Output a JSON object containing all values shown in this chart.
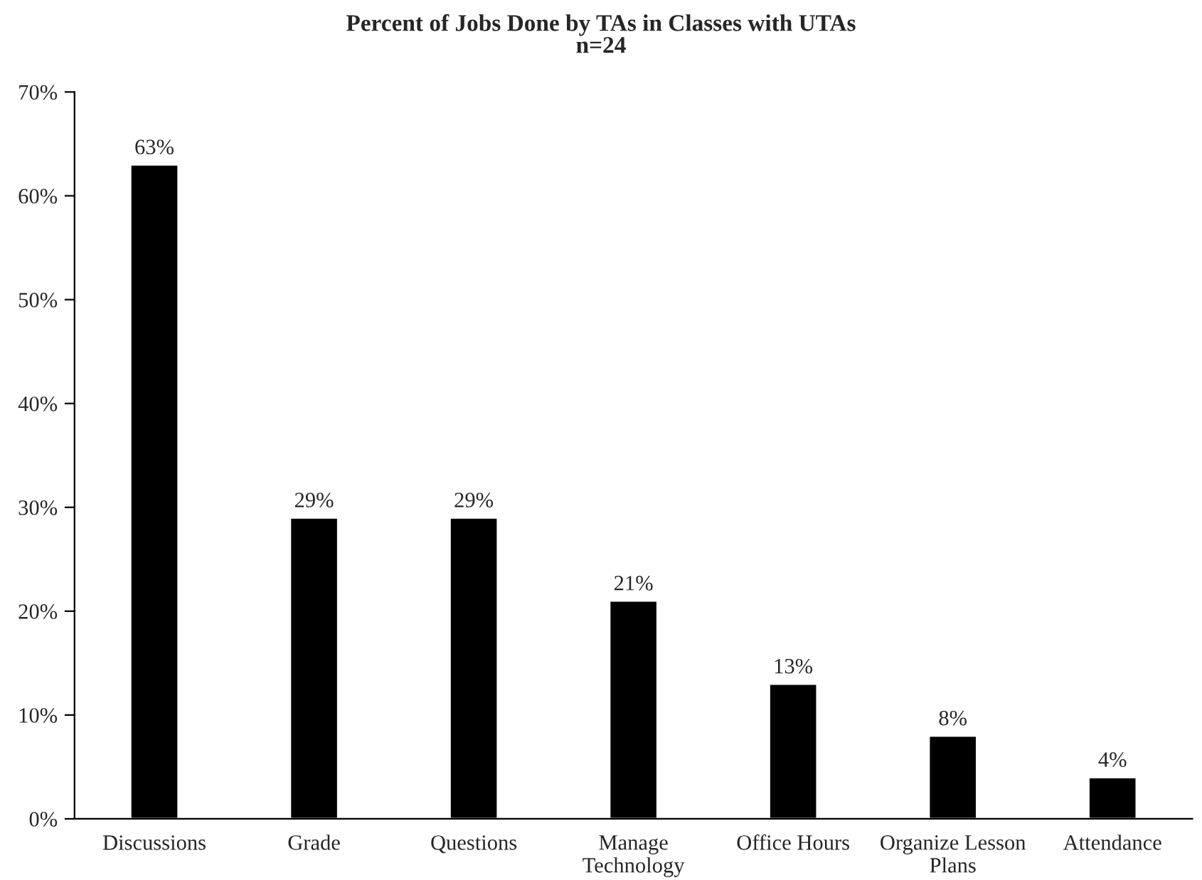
{
  "chart_data": {
    "type": "bar",
    "title": "Percent of Jobs Done by TAs in Classes with UTAs",
    "subtitle": "n=24",
    "categories": [
      "Discussions",
      "Grade",
      "Questions",
      "Manage\nTechnology",
      "Office Hours",
      "Organize Lesson\nPlans",
      "Attendance"
    ],
    "values": [
      63,
      29,
      29,
      21,
      13,
      8,
      4
    ],
    "value_labels": [
      "63%",
      "29%",
      "29%",
      "21%",
      "13%",
      "8%",
      "4%"
    ],
    "color": "#000000",
    "ylim": [
      0,
      70
    ],
    "yticks": [
      {
        "value": 0,
        "label": "0%"
      },
      {
        "value": 10,
        "label": "10%"
      },
      {
        "value": 20,
        "label": "20%"
      },
      {
        "value": 30,
        "label": "30%"
      },
      {
        "value": 40,
        "label": "40%"
      },
      {
        "value": 50,
        "label": "50%"
      },
      {
        "value": 60,
        "label": "60%"
      },
      {
        "value": 70,
        "label": "70%"
      }
    ],
    "grid": false
  }
}
